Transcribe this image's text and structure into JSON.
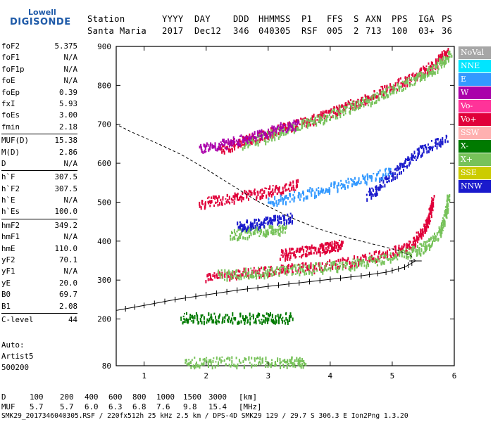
{
  "logo": {
    "top": "Lowell",
    "main": "DIGISONDE"
  },
  "header": {
    "labels": [
      "Station",
      "YYYY",
      "DAY",
      "DDD",
      "HHMMSS",
      "P1",
      "FFS",
      "S",
      "AXN",
      "PPS",
      "IGA",
      "PS"
    ],
    "values": [
      "Santa Maria",
      "2017",
      "Dec12",
      "346",
      "040305",
      "RSF",
      "005",
      "2",
      "713",
      "100",
      "03+",
      "36"
    ]
  },
  "params": [
    [
      {
        "name": "foF2",
        "value": "5.375"
      },
      {
        "name": "foF1",
        "value": "N/A"
      },
      {
        "name": "foF1p",
        "value": "N/A"
      },
      {
        "name": "foE",
        "value": "N/A"
      },
      {
        "name": "foEp",
        "value": "0.39"
      },
      {
        "name": "fxI",
        "value": "5.93"
      },
      {
        "name": "foEs",
        "value": "3.00"
      },
      {
        "name": "fmin",
        "value": "2.18"
      }
    ],
    [
      {
        "name": "MUF(D)",
        "value": "15.38"
      },
      {
        "name": "M(D)",
        "value": "2.86"
      },
      {
        "name": "D",
        "value": "N/A"
      }
    ],
    [
      {
        "name": "h`F",
        "value": "307.5"
      },
      {
        "name": "h`F2",
        "value": "307.5"
      },
      {
        "name": "h`E",
        "value": "N/A"
      },
      {
        "name": "h`Es",
        "value": "100.0"
      }
    ],
    [
      {
        "name": "hmF2",
        "value": "349.2"
      },
      {
        "name": "hmF1",
        "value": "N/A"
      },
      {
        "name": "hmE",
        "value": "110.0"
      },
      {
        "name": "yF2",
        "value": "70.1"
      },
      {
        "name": "yF1",
        "value": "N/A"
      },
      {
        "name": "yE",
        "value": "20.0"
      },
      {
        "name": "B0",
        "value": "69.7"
      },
      {
        "name": "B1",
        "value": "2.08"
      }
    ],
    [
      {
        "name": "C-level",
        "value": "44"
      }
    ]
  ],
  "auto": {
    "line1": "Auto:",
    "line2": "Artist5",
    "line3": "500200"
  },
  "legend": [
    {
      "label": "NoVal",
      "color": "#a6a6a6"
    },
    {
      "label": "NNE",
      "color": "#00e5ff"
    },
    {
      "label": "E",
      "color": "#3399ff"
    },
    {
      "label": "W",
      "color": "#aa00aa"
    },
    {
      "label": "Vo-",
      "color": "#ff3399"
    },
    {
      "label": "Vo+",
      "color": "#e0003a"
    },
    {
      "label": "SSW",
      "color": "#ffb0b0"
    },
    {
      "label": "X-",
      "color": "#007a00"
    },
    {
      "label": "X+",
      "color": "#77c25a"
    },
    {
      "label": "SSE",
      "color": "#cccc00"
    },
    {
      "label": "NNW",
      "color": "#1a1acc"
    }
  ],
  "footer": {
    "row1_label": "D",
    "row1_values": [
      "100",
      "200",
      "400",
      "600",
      "800",
      "1000",
      "1500",
      "3000",
      "[km]"
    ],
    "row2_label": "MUF",
    "row2_values": [
      "5.7",
      "5.7",
      "6.0",
      "6.3",
      "6.8",
      "7.6",
      "9.8",
      "15.4",
      "[MHz]"
    ],
    "line3": "SMK29_2017346040305.RSF / 220fx512h 25 kHz 2.5 km / DPS-4D SMK29 129 / 29.7 S 306.3 E Ion2Png 1.3.20"
  },
  "chart_data": {
    "type": "scatter",
    "xlabel": "",
    "ylabel": "",
    "xlim": [
      0.55,
      6.0
    ],
    "ylim": [
      80,
      900
    ],
    "x_ticks": [
      1,
      2,
      3,
      4,
      5,
      6
    ],
    "y_ticks": [
      80,
      200,
      300,
      400,
      500,
      600,
      700,
      800,
      900
    ],
    "series": [
      {
        "kind": "trace",
        "color": "#e0003a",
        "points": [
          [
            2.0,
            310
          ],
          [
            2.5,
            318
          ],
          [
            3.0,
            325
          ],
          [
            3.5,
            333
          ],
          [
            4.0,
            342
          ],
          [
            4.5,
            355
          ],
          [
            5.0,
            372
          ],
          [
            5.3,
            395
          ],
          [
            5.5,
            430
          ],
          [
            5.6,
            470
          ],
          [
            5.65,
            510
          ]
        ]
      },
      {
        "kind": "trace",
        "color": "#77c25a",
        "points": [
          [
            2.2,
            315
          ],
          [
            2.7,
            320
          ],
          [
            3.2,
            326
          ],
          [
            3.7,
            332
          ],
          [
            4.2,
            340
          ],
          [
            4.7,
            352
          ],
          [
            5.2,
            370
          ],
          [
            5.5,
            385
          ],
          [
            5.75,
            420
          ],
          [
            5.85,
            470
          ],
          [
            5.9,
            520
          ]
        ]
      },
      {
        "kind": "trace",
        "color": "#e0003a",
        "points": [
          [
            2.2,
            640
          ],
          [
            2.6,
            660
          ],
          [
            3.0,
            680
          ],
          [
            3.4,
            700
          ],
          [
            3.8,
            720
          ],
          [
            4.2,
            745
          ],
          [
            4.6,
            770
          ],
          [
            5.0,
            800
          ],
          [
            5.4,
            830
          ],
          [
            5.7,
            860
          ],
          [
            5.9,
            890
          ]
        ]
      },
      {
        "kind": "trace",
        "color": "#77c25a",
        "points": [
          [
            2.6,
            650
          ],
          [
            3.0,
            672
          ],
          [
            3.4,
            694
          ],
          [
            3.8,
            714
          ],
          [
            4.2,
            738
          ],
          [
            4.6,
            762
          ],
          [
            5.0,
            790
          ],
          [
            5.4,
            820
          ],
          [
            5.7,
            850
          ],
          [
            5.95,
            885
          ]
        ]
      },
      {
        "kind": "trace",
        "color": "#aa00aa",
        "points": [
          [
            1.9,
            638
          ],
          [
            2.3,
            652
          ],
          [
            2.7,
            668
          ],
          [
            3.1,
            688
          ],
          [
            3.5,
            706
          ]
        ]
      },
      {
        "kind": "trace",
        "color": "#e0003a",
        "points": [
          [
            1.9,
            500
          ],
          [
            2.3,
            510
          ],
          [
            2.7,
            522
          ],
          [
            3.1,
            535
          ],
          [
            3.5,
            548
          ]
        ]
      },
      {
        "kind": "trace",
        "color": "#77c25a",
        "points": [
          [
            2.4,
            418
          ],
          [
            2.7,
            424
          ],
          [
            3.0,
            430
          ],
          [
            3.3,
            435
          ]
        ]
      },
      {
        "kind": "trace",
        "color": "#1a1acc",
        "points": [
          [
            2.5,
            440
          ],
          [
            2.8,
            448
          ],
          [
            3.1,
            455
          ],
          [
            3.4,
            462
          ]
        ]
      },
      {
        "kind": "trace",
        "color": "#e0003a",
        "points": [
          [
            3.2,
            368
          ],
          [
            3.5,
            374
          ],
          [
            3.8,
            382
          ],
          [
            4.0,
            388
          ],
          [
            4.2,
            393
          ]
        ]
      },
      {
        "kind": "trace",
        "color": "#007a00",
        "points": [
          [
            1.6,
            205
          ],
          [
            2.0,
            205
          ],
          [
            2.5,
            205
          ],
          [
            3.0,
            205
          ],
          [
            3.4,
            205
          ]
        ]
      },
      {
        "kind": "trace",
        "color": "#77c25a",
        "points": [
          [
            1.65,
            92
          ],
          [
            2.2,
            92
          ],
          [
            2.8,
            92
          ],
          [
            3.3,
            92
          ],
          [
            3.6,
            92
          ]
        ]
      },
      {
        "kind": "trace",
        "color": "#1a1acc",
        "points": [
          [
            4.6,
            520
          ],
          [
            4.9,
            560
          ],
          [
            5.2,
            600
          ],
          [
            5.5,
            640
          ],
          [
            5.9,
            670
          ]
        ]
      },
      {
        "kind": "trace",
        "color": "#3399ff",
        "points": [
          [
            3.0,
            500
          ],
          [
            3.5,
            520
          ],
          [
            4.0,
            540
          ],
          [
            4.5,
            560
          ],
          [
            5.0,
            580
          ]
        ]
      }
    ],
    "profile": {
      "points": [
        [
          0.55,
          222
        ],
        [
          1.0,
          235
        ],
        [
          1.5,
          250
        ],
        [
          2.0,
          262
        ],
        [
          2.5,
          274
        ],
        [
          3.0,
          284
        ],
        [
          3.5,
          293
        ],
        [
          4.0,
          302
        ],
        [
          4.5,
          311
        ],
        [
          4.9,
          320
        ],
        [
          5.2,
          333
        ],
        [
          5.375,
          349.2
        ]
      ]
    },
    "extrapolation": {
      "points": [
        [
          5.375,
          349.2
        ],
        [
          5.3,
          362
        ],
        [
          5.1,
          376
        ],
        [
          4.8,
          388
        ],
        [
          4.3,
          408
        ],
        [
          3.8,
          432
        ],
        [
          3.3,
          465
        ],
        [
          2.8,
          505
        ],
        [
          2.4,
          545
        ],
        [
          2.0,
          585
        ],
        [
          1.6,
          622
        ],
        [
          1.2,
          652
        ],
        [
          0.8,
          680
        ],
        [
          0.55,
          700
        ]
      ]
    }
  }
}
